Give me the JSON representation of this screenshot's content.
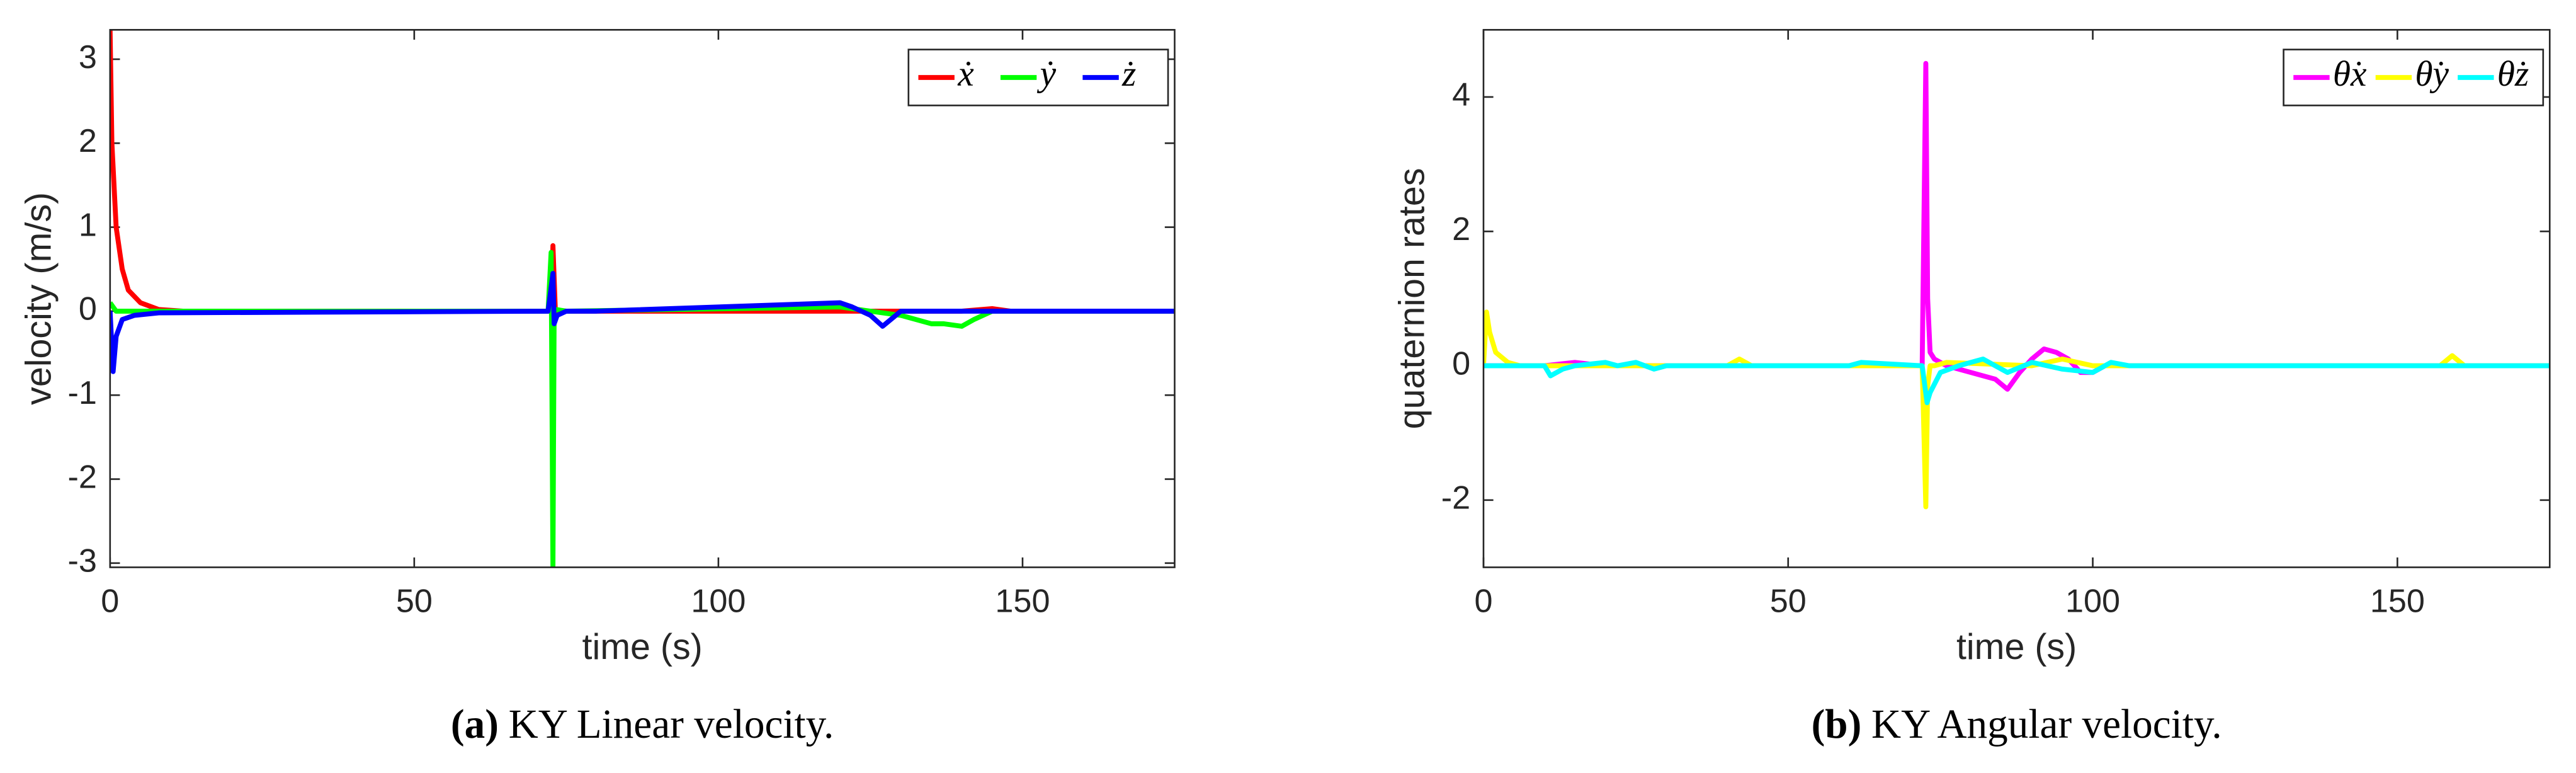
{
  "chart_data": [
    {
      "type": "line",
      "caption_label": "(a)",
      "caption": "KY Linear velocity.",
      "xlabel": "time (s)",
      "ylabel": "velocity (m/s)",
      "xlim": [
        0,
        175
      ],
      "xticks": [
        0,
        50,
        100,
        150
      ],
      "ylim": [
        -3.05,
        3.35
      ],
      "yticks": [
        -3,
        -2,
        -1,
        0,
        1,
        2,
        3
      ],
      "legend": "upper right",
      "series": [
        {
          "name": "ẋ",
          "color": "#ff0000",
          "x": [
            0,
            0.3,
            1,
            2,
            3,
            5,
            8,
            12,
            30,
            60,
            72.5,
            72.8,
            73.2,
            75,
            100,
            140,
            145,
            148,
            175
          ],
          "values": [
            3.35,
            2.0,
            1.0,
            0.5,
            0.25,
            0.1,
            0.02,
            0,
            0,
            0,
            0,
            0.78,
            0,
            0,
            0,
            0,
            0.03,
            0,
            0
          ]
        },
        {
          "name": "ẏ",
          "color": "#00ff00",
          "x": [
            0,
            0.5,
            1,
            5,
            72,
            72.5,
            72.8,
            73,
            73.3,
            75,
            120,
            130,
            135,
            137,
            140,
            142,
            145,
            175
          ],
          "values": [
            0.1,
            0.05,
            0,
            0,
            0,
            0.7,
            -3.05,
            0,
            0.02,
            0,
            0.05,
            -0.05,
            -0.15,
            -0.15,
            -0.18,
            -0.1,
            0,
            0
          ]
        },
        {
          "name": "ż",
          "color": "#0000ff",
          "x": [
            0,
            0.5,
            1,
            2,
            4,
            8,
            72,
            72.8,
            73,
            73.5,
            75,
            80,
            120,
            122,
            125,
            127,
            130,
            175
          ],
          "values": [
            0,
            -0.72,
            -0.3,
            -0.1,
            -0.05,
            -0.02,
            0,
            0.45,
            -0.15,
            -0.05,
            0,
            0,
            0.1,
            0.05,
            -0.05,
            -0.18,
            0,
            0
          ]
        }
      ]
    },
    {
      "type": "line",
      "caption_label": "(b)",
      "caption": "KY Angular velocity.",
      "xlabel": "time (s)",
      "ylabel": "quaternion rates",
      "xlim": [
        0,
        175
      ],
      "xticks": [
        0,
        50,
        100,
        150
      ],
      "ylim": [
        -3,
        5
      ],
      "yticks": [
        -2,
        0,
        2,
        4
      ],
      "legend": "upper right",
      "series": [
        {
          "name": "θ̇x",
          "color": "#ff00ff",
          "x": [
            0,
            10,
            15,
            20,
            72,
            72.6,
            72.9,
            73.3,
            74,
            76,
            80,
            84,
            86,
            88,
            90,
            92,
            94,
            96,
            98,
            100,
            102,
            105,
            175
          ],
          "values": [
            0,
            0,
            0.05,
            0,
            0,
            4.5,
            1.0,
            0.2,
            0.1,
            0,
            -0.1,
            -0.2,
            -0.35,
            -0.1,
            0.1,
            0.25,
            0.2,
            0.1,
            -0.1,
            -0.1,
            0,
            0,
            0
          ]
        },
        {
          "name": "θ̇y",
          "color": "#ffff00",
          "x": [
            0,
            0.5,
            1,
            2,
            4,
            6,
            10,
            40,
            42,
            44,
            72,
            72.6,
            72.9,
            73.3,
            74,
            76,
            90,
            95,
            100,
            105,
            157,
            159,
            161,
            175
          ],
          "values": [
            0,
            0.8,
            0.5,
            0.2,
            0.05,
            0,
            0,
            0,
            0.1,
            0,
            0,
            -2.1,
            -0.3,
            0,
            0,
            0.05,
            0,
            0.1,
            0,
            0,
            0,
            0.15,
            0,
            0
          ]
        },
        {
          "name": "θ̇z",
          "color": "#00ffff",
          "x": [
            0,
            10,
            11,
            13,
            15,
            20,
            22,
            25,
            28,
            30,
            60,
            62,
            72,
            72.8,
            73.3,
            75,
            78,
            82,
            86,
            90,
            95,
            100,
            103,
            106,
            175
          ],
          "values": [
            0,
            0,
            -0.15,
            -0.05,
            0,
            0.05,
            0,
            0.05,
            -0.05,
            0,
            0,
            0.05,
            0,
            -0.55,
            -0.4,
            -0.1,
            0,
            0.1,
            -0.1,
            0.05,
            -0.05,
            -0.1,
            0.05,
            0,
            0
          ]
        }
      ]
    }
  ]
}
